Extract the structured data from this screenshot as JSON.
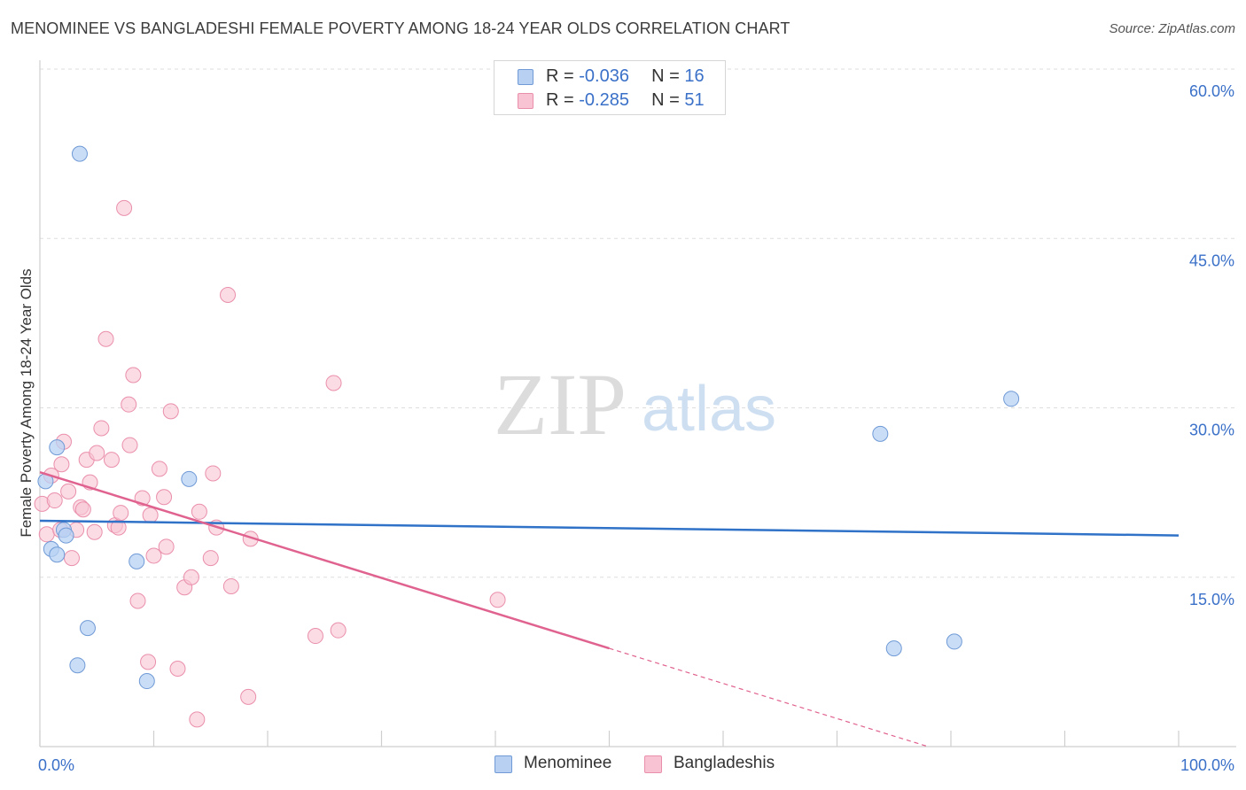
{
  "title": "MENOMINEE VS BANGLADESHI FEMALE POVERTY AMONG 18-24 YEAR OLDS CORRELATION CHART",
  "source": "Source: ZipAtlas.com",
  "watermark": {
    "zip": "ZIP",
    "atlas": "atlas"
  },
  "legend_top": {
    "rows": [
      {
        "r_label": "R = ",
        "r_value": "-0.036",
        "n_label": "N = ",
        "n_value": "16"
      },
      {
        "r_label": "R = ",
        "r_value": "-0.285",
        "n_label": "N = ",
        "n_value": "51"
      }
    ]
  },
  "colors": {
    "menominee_fill": "#b8d1f3",
    "menominee_stroke": "#6f9ad6",
    "menominee_line": "#2f72c8",
    "bangladeshi_fill": "#f8c4d3",
    "bangladeshi_stroke": "#ea8fab",
    "bangladeshi_line": "#e0628f",
    "tick_label": "#3a70c8",
    "grid": "#dddddd"
  },
  "chart_data": {
    "type": "scatter",
    "title": "MENOMINEE VS BANGLADESHI FEMALE POVERTY AMONG 18-24 YEAR OLDS CORRELATION CHART",
    "xlabel": "",
    "ylabel": "Female Poverty Among 18-24 Year Olds",
    "xlim": [
      0,
      100
    ],
    "ylim": [
      0,
      60
    ],
    "x_tick_labels": [
      "0.0%",
      "100.0%"
    ],
    "y_ticks": [
      15,
      30,
      45,
      60
    ],
    "y_tick_labels": [
      "15.0%",
      "30.0%",
      "45.0%",
      "60.0%"
    ],
    "legend": [
      "Menominee",
      "Bangladeshis"
    ],
    "series": [
      {
        "name": "Menominee",
        "r": -0.036,
        "n": 16,
        "points": [
          [
            0.5,
            23.5
          ],
          [
            1.0,
            17.5
          ],
          [
            1.5,
            26.5
          ],
          [
            1.5,
            17.0
          ],
          [
            2.1,
            19.2
          ],
          [
            2.3,
            18.7
          ],
          [
            3.5,
            52.5
          ],
          [
            4.2,
            10.5
          ],
          [
            3.3,
            7.2
          ],
          [
            8.5,
            16.4
          ],
          [
            9.4,
            5.8
          ],
          [
            13.1,
            23.7
          ],
          [
            73.8,
            27.7
          ],
          [
            85.3,
            30.8
          ],
          [
            75.0,
            8.7
          ],
          [
            80.3,
            9.3
          ]
        ],
        "trend": {
          "x": [
            0,
            100
          ],
          "y": [
            20.0,
            18.7
          ]
        }
      },
      {
        "name": "Bangladeshis",
        "r": -0.285,
        "n": 51,
        "points": [
          [
            0.2,
            21.5
          ],
          [
            0.6,
            18.8
          ],
          [
            1.0,
            24.0
          ],
          [
            1.3,
            21.8
          ],
          [
            1.8,
            19.2
          ],
          [
            1.9,
            25.0
          ],
          [
            2.1,
            27.0
          ],
          [
            2.5,
            22.6
          ],
          [
            2.8,
            16.7
          ],
          [
            3.2,
            19.2
          ],
          [
            3.6,
            21.2
          ],
          [
            3.8,
            21.0
          ],
          [
            4.1,
            25.4
          ],
          [
            4.4,
            23.4
          ],
          [
            4.8,
            19.0
          ],
          [
            5.0,
            26.0
          ],
          [
            5.4,
            28.2
          ],
          [
            5.8,
            36.1
          ],
          [
            6.3,
            25.4
          ],
          [
            6.6,
            19.6
          ],
          [
            6.9,
            19.4
          ],
          [
            7.1,
            20.7
          ],
          [
            7.4,
            47.7
          ],
          [
            7.8,
            30.3
          ],
          [
            7.9,
            26.7
          ],
          [
            8.2,
            32.9
          ],
          [
            8.6,
            12.9
          ],
          [
            9.0,
            22.0
          ],
          [
            9.5,
            7.5
          ],
          [
            9.7,
            20.5
          ],
          [
            10.0,
            16.9
          ],
          [
            10.5,
            24.6
          ],
          [
            10.9,
            22.1
          ],
          [
            11.1,
            17.7
          ],
          [
            11.5,
            29.7
          ],
          [
            12.1,
            6.9
          ],
          [
            12.7,
            14.1
          ],
          [
            13.3,
            15.0
          ],
          [
            13.8,
            2.4
          ],
          [
            14.0,
            20.8
          ],
          [
            15.0,
            16.7
          ],
          [
            15.2,
            24.2
          ],
          [
            15.5,
            19.4
          ],
          [
            16.5,
            40.0
          ],
          [
            16.8,
            14.2
          ],
          [
            18.3,
            4.4
          ],
          [
            18.5,
            18.4
          ],
          [
            24.2,
            9.8
          ],
          [
            25.8,
            32.2
          ],
          [
            26.2,
            10.3
          ],
          [
            40.2,
            13.0
          ]
        ],
        "trend": {
          "x": [
            0,
            50
          ],
          "y": [
            24.3,
            8.7
          ]
        },
        "trend_dashed": {
          "x": [
            50,
            78
          ],
          "y": [
            8.7,
            0
          ]
        }
      }
    ]
  }
}
